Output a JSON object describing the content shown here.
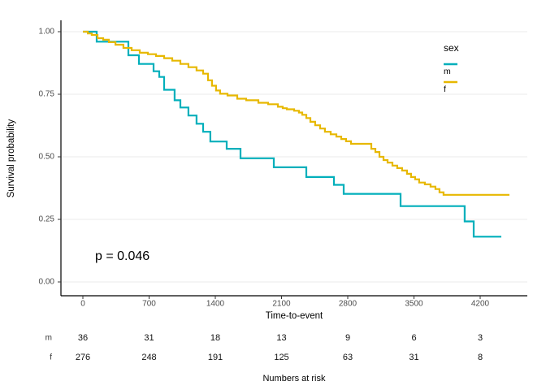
{
  "figure": {
    "background": "#ffffff",
    "grid_color": "#ebebeb",
    "axis_color": "#000000",
    "tick_text_color": "#4d4d4d"
  },
  "chart_data": {
    "type": "line",
    "subtype": "kaplan-meier-step",
    "title": "",
    "xlabel": "Time-to-event",
    "ylabel": "Survival probability",
    "xlim": [
      -230,
      4690
    ],
    "ylim": [
      0,
      1.045
    ],
    "grid": {
      "horizontal": true,
      "vertical": false,
      "color": "#ebebeb"
    },
    "x_ticks": [
      0,
      700,
      1400,
      2100,
      2800,
      3500,
      4200
    ],
    "y_ticks": [
      0,
      0.25,
      0.5,
      0.75,
      1
    ],
    "y_tick_labels": [
      "0.00",
      "0.25",
      "0.50",
      "0.75",
      "1.00"
    ],
    "legend": {
      "title": "sex",
      "position": "right"
    },
    "annotations": {
      "p_value": "p = 0.046"
    },
    "series": [
      {
        "name": "m",
        "color": "#00AFBB",
        "points": [
          [
            0,
            1.0
          ],
          [
            146,
            0.96
          ],
          [
            481,
            0.906
          ],
          [
            593,
            0.871
          ],
          [
            747,
            0.842
          ],
          [
            807,
            0.819
          ],
          [
            859,
            0.768
          ],
          [
            970,
            0.726
          ],
          [
            1031,
            0.697
          ],
          [
            1116,
            0.665
          ],
          [
            1202,
            0.632
          ],
          [
            1271,
            0.6
          ],
          [
            1348,
            0.561
          ],
          [
            1520,
            0.532
          ],
          [
            1666,
            0.494
          ],
          [
            2018,
            0.458
          ],
          [
            2362,
            0.419
          ],
          [
            2654,
            0.388
          ],
          [
            2757,
            0.352
          ],
          [
            3358,
            0.303
          ],
          [
            4036,
            0.242
          ],
          [
            4131,
            0.181
          ],
          [
            4423,
            0.181
          ]
        ]
      },
      {
        "name": "f",
        "color": "#E7B800",
        "points": [
          [
            0,
            1.0
          ],
          [
            52,
            0.993
          ],
          [
            94,
            0.987
          ],
          [
            155,
            0.974
          ],
          [
            215,
            0.968
          ],
          [
            275,
            0.958
          ],
          [
            344,
            0.948
          ],
          [
            429,
            0.935
          ],
          [
            515,
            0.926
          ],
          [
            601,
            0.916
          ],
          [
            687,
            0.91
          ],
          [
            773,
            0.903
          ],
          [
            859,
            0.894
          ],
          [
            945,
            0.884
          ],
          [
            1031,
            0.871
          ],
          [
            1116,
            0.858
          ],
          [
            1202,
            0.845
          ],
          [
            1271,
            0.832
          ],
          [
            1323,
            0.806
          ],
          [
            1365,
            0.784
          ],
          [
            1408,
            0.765
          ],
          [
            1451,
            0.752
          ],
          [
            1529,
            0.745
          ],
          [
            1632,
            0.732
          ],
          [
            1726,
            0.726
          ],
          [
            1855,
            0.716
          ],
          [
            1958,
            0.71
          ],
          [
            2061,
            0.7
          ],
          [
            2113,
            0.694
          ],
          [
            2156,
            0.69
          ],
          [
            2233,
            0.684
          ],
          [
            2284,
            0.677
          ],
          [
            2319,
            0.668
          ],
          [
            2362,
            0.655
          ],
          [
            2405,
            0.64
          ],
          [
            2456,
            0.626
          ],
          [
            2508,
            0.613
          ],
          [
            2559,
            0.6
          ],
          [
            2620,
            0.59
          ],
          [
            2680,
            0.581
          ],
          [
            2731,
            0.571
          ],
          [
            2782,
            0.562
          ],
          [
            2834,
            0.552
          ],
          [
            3049,
            0.532
          ],
          [
            3092,
            0.519
          ],
          [
            3135,
            0.5
          ],
          [
            3178,
            0.487
          ],
          [
            3221,
            0.477
          ],
          [
            3272,
            0.465
          ],
          [
            3323,
            0.455
          ],
          [
            3375,
            0.445
          ],
          [
            3426,
            0.432
          ],
          [
            3469,
            0.419
          ],
          [
            3512,
            0.41
          ],
          [
            3555,
            0.397
          ],
          [
            3615,
            0.39
          ],
          [
            3675,
            0.381
          ],
          [
            3727,
            0.371
          ],
          [
            3770,
            0.358
          ],
          [
            3813,
            0.348
          ],
          [
            4509,
            0.348
          ]
        ]
      }
    ],
    "risk_table": {
      "title": "Numbers at risk",
      "time_points": [
        0,
        700,
        1400,
        2100,
        2800,
        3500,
        4200
      ],
      "rows": [
        {
          "label": "m",
          "counts": [
            36,
            31,
            18,
            13,
            9,
            6,
            3
          ]
        },
        {
          "label": "f",
          "counts": [
            276,
            248,
            191,
            125,
            63,
            31,
            8
          ]
        }
      ]
    }
  }
}
